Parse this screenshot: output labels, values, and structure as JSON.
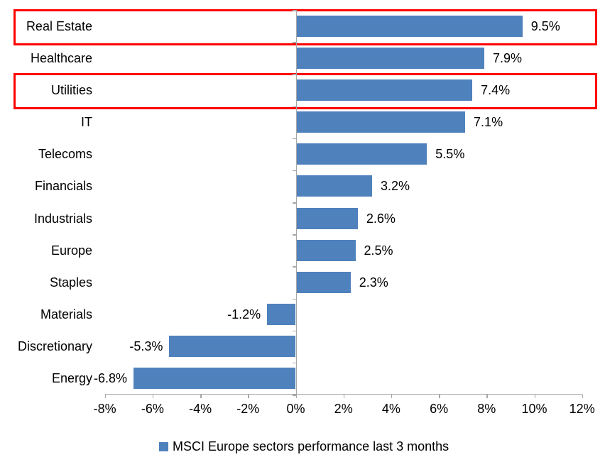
{
  "chart_data": {
    "type": "bar",
    "orientation": "horizontal",
    "title": "",
    "xlabel": "",
    "ylabel": "",
    "categories": [
      "Real Estate",
      "Healthcare",
      "Utilities",
      "IT",
      "Telecoms",
      "Financials",
      "Industrials",
      "Europe",
      "Staples",
      "Materials",
      "Discretionary",
      "Energy"
    ],
    "values": [
      9.5,
      7.9,
      7.4,
      7.1,
      5.5,
      3.2,
      2.6,
      2.5,
      2.3,
      -1.2,
      -5.3,
      -6.8
    ],
    "data_labels": [
      "9.5%",
      "7.9%",
      "7.4%",
      "7.1%",
      "5.5%",
      "3.2%",
      "2.6%",
      "2.5%",
      "2.3%",
      "-1.2%",
      "-5.3%",
      "-6.8%"
    ],
    "xlim": [
      -8,
      12
    ],
    "x_ticks": [
      -8,
      -6,
      -4,
      -2,
      0,
      2,
      4,
      6,
      8,
      10,
      12
    ],
    "x_tick_labels": [
      "-8%",
      "-6%",
      "-4%",
      "-2%",
      "0%",
      "2%",
      "4%",
      "6%",
      "8%",
      "10%",
      "12%"
    ],
    "grid": false,
    "legend": {
      "position": "bottom",
      "label": "MSCI Europe sectors performance last 3 months"
    },
    "highlighted_categories": [
      "Real Estate",
      "Utilities"
    ],
    "colors": {
      "bar": "#4F81BD",
      "highlight_box": "#FF0000",
      "axis": "#A6A6A6",
      "text": "#000000",
      "background": "#FFFFFF"
    }
  }
}
